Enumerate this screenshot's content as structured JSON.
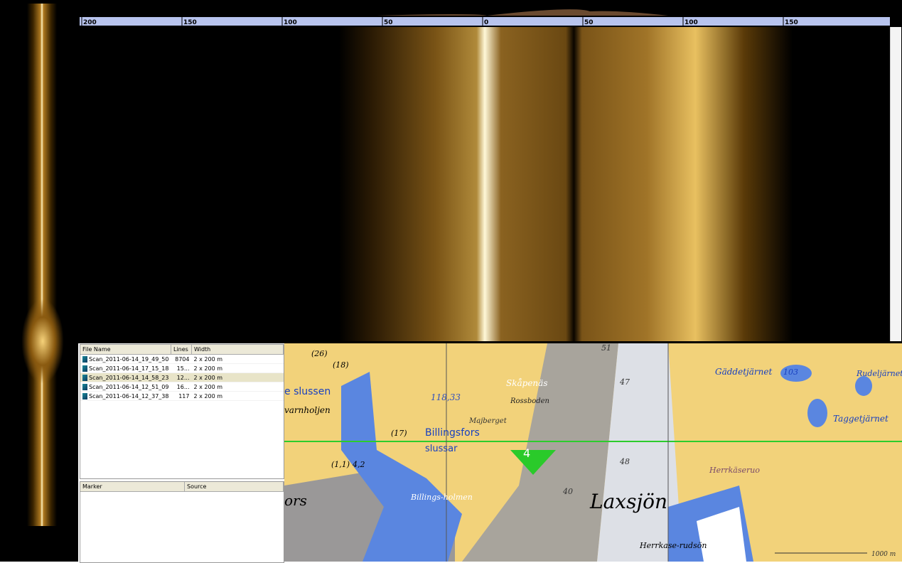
{
  "ruler": {
    "labels": [
      "200",
      "150",
      "100",
      "50",
      "0",
      "50",
      "100",
      "150"
    ]
  },
  "file_list": {
    "headers": [
      "File Name",
      "Lines",
      "Width"
    ],
    "rows": [
      [
        "Scan_2011-06-14_19_49_50",
        "8704",
        "2 x 200 m"
      ],
      [
        "Scan_2011-06-14_17_15_18",
        "15...",
        "2 x 200 m"
      ],
      [
        "Scan_2011-06-14_14_58_23",
        "12...",
        "2 x 200 m"
      ],
      [
        "Scan_2011-06-14_12_51_09",
        "16...",
        "2 x 200 m"
      ],
      [
        "Scan_2011-06-14_12_37_38",
        "117",
        "2 x 200 m"
      ]
    ]
  },
  "marker_list": {
    "headers": [
      "Marker",
      "Source"
    ]
  },
  "map": {
    "labels": [
      "(26)",
      "(18)",
      "e slussen",
      "varnholjen",
      "118,33",
      "Skåpenäs",
      "Rossboden",
      "Majberget",
      "(17)",
      "Billingsfors",
      "slussar",
      "4",
      "(1,1)",
      "4,2",
      "ors",
      "Billings-holmen",
      "Laxsjön",
      "47",
      "48",
      "40",
      "51",
      "Gäddetjärnet",
      "103",
      "Rudeljärnet",
      "Taggetjärnet",
      "Herrkäseruo",
      "Herrkase-rudsön",
      "1000 m"
    ]
  }
}
